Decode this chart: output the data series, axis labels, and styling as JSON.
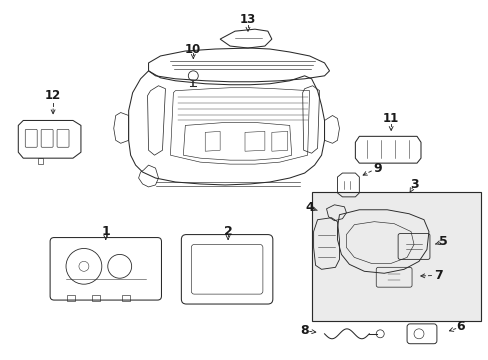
{
  "bg_color": "#ffffff",
  "fig_width": 4.89,
  "fig_height": 3.6,
  "dpi": 100,
  "lc": "#2a2a2a",
  "lw": 0.75,
  "inset_bg": "#ebebeb"
}
